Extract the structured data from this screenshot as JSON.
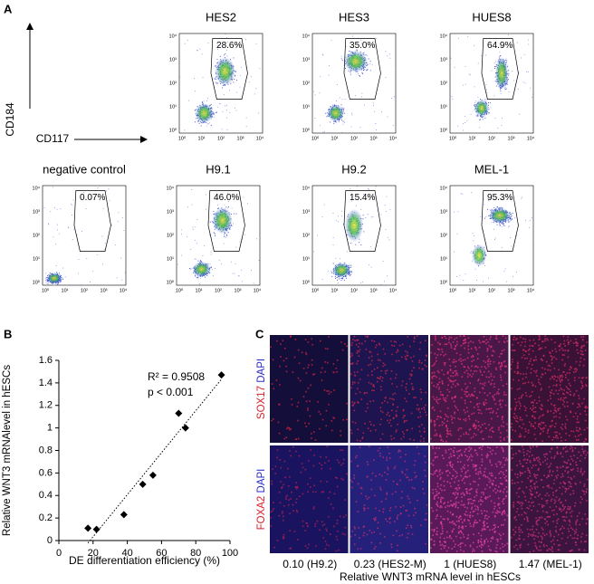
{
  "panel_a": {
    "label": "A",
    "y_axis": "CD184",
    "x_axis": "CD117",
    "axis_ticks": [
      "10⁰",
      "10¹",
      "10²",
      "10³",
      "10⁴"
    ],
    "plots": [
      {
        "title": "HES2",
        "gate": "28.6%"
      },
      {
        "title": "HES3",
        "gate": "35.0%"
      },
      {
        "title": "HUES8",
        "gate": "64.9%"
      },
      {
        "title": "negative control",
        "gate": "0.07%"
      },
      {
        "title": "H9.1",
        "gate": "46.0%"
      },
      {
        "title": "H9.2",
        "gate": "15.4%"
      },
      {
        "title": "MEL-1",
        "gate": "95.3%"
      }
    ]
  },
  "chart_data": {
    "type": "scatter",
    "panel_label": "B",
    "x_label": "DE differentiation efficiency (%)",
    "y_label": "Relative WNT3 mRNAlevel in hESCs",
    "annotations": [
      "R² = 0.9508",
      "p < 0.001"
    ],
    "x": [
      17,
      22,
      38,
      49,
      55,
      70,
      74,
      95
    ],
    "values": [
      0.11,
      0.1,
      0.23,
      0.5,
      0.58,
      1.13,
      1.0,
      1.47
    ],
    "color": "#000000",
    "xlim": [
      0,
      100
    ],
    "xticks": [
      0,
      20,
      40,
      60,
      80,
      100
    ],
    "ylim": [
      0,
      1.6
    ],
    "yticks": [
      0,
      0.2,
      0.4,
      0.6,
      0.8,
      1,
      1.2,
      1.4,
      1.6
    ],
    "trendline": true
  },
  "panel_c": {
    "label": "C",
    "rows": [
      {
        "marker": "SOX17",
        "stain": "DAPI"
      },
      {
        "marker": "FOXA2",
        "stain": "DAPI"
      }
    ],
    "columns": [
      "0.10 (H9.2)",
      "0.23 (HES2-M)",
      "1 (HUES8)",
      "1.47 (MEL-1)"
    ],
    "axis_label": "Relative WNT3 mRNA level in hESCs"
  }
}
